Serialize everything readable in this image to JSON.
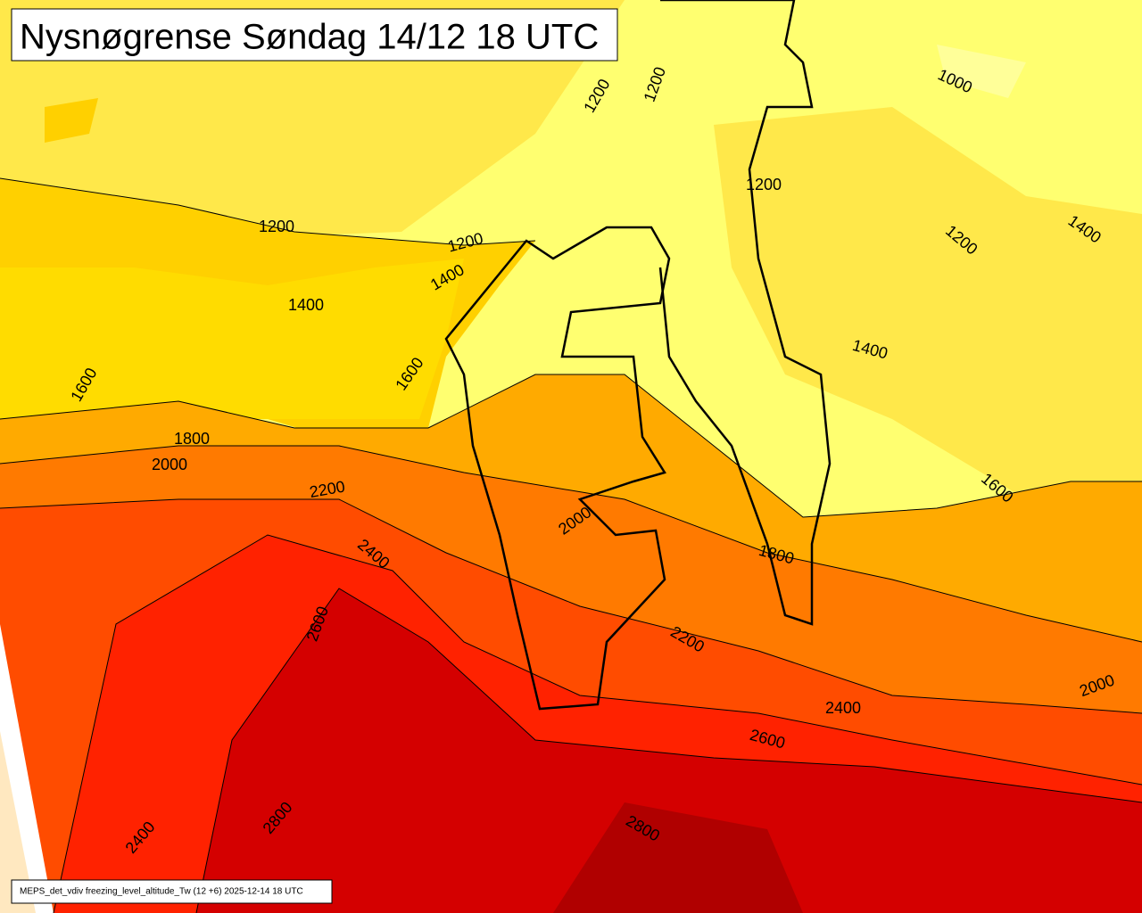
{
  "title": "Nysnøgrense Søndag 14/12 18 UTC",
  "footer": "MEPS_det_vdiv freezing_level_altitude_Tw (12 +6) 2025-12-14 18 UTC",
  "contour_labels": [
    1000,
    1200,
    1200,
    1200,
    1200,
    1200,
    1200,
    1400,
    1400,
    1400,
    1400,
    1600,
    1600,
    1600,
    1800,
    1800,
    2000,
    2000,
    2000,
    2200,
    2200,
    2400,
    2400,
    2400,
    2600,
    2600,
    2800,
    2800
  ]
}
